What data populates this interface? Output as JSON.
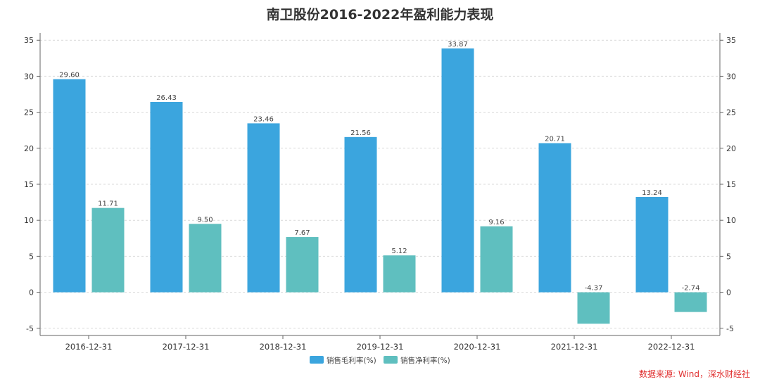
{
  "chart_data": {
    "type": "bar",
    "title": "南卫股份2016-2022年盈利能力表现",
    "categories": [
      "2016-12-31",
      "2017-12-31",
      "2018-12-31",
      "2019-12-31",
      "2020-12-31",
      "2021-12-31",
      "2022-12-31"
    ],
    "series": [
      {
        "name": "销售毛利率(%)",
        "color": "#3ba5de",
        "values": [
          29.6,
          26.43,
          23.46,
          21.56,
          33.87,
          20.71,
          13.24
        ],
        "labels": [
          "29.60",
          "26.43",
          "23.46",
          "21.56",
          "33.87",
          "20.71",
          "13.24"
        ]
      },
      {
        "name": "销售净利率(%)",
        "color": "#5fbfbf",
        "values": [
          11.71,
          9.5,
          7.67,
          5.12,
          9.16,
          -4.37,
          -2.74
        ],
        "labels": [
          "11.71",
          "9.50",
          "7.67",
          "5.12",
          "9.16",
          "-4.37",
          "-2.74"
        ]
      }
    ],
    "ylim": [
      -6,
      36
    ],
    "yticks": [
      -5,
      0,
      5,
      10,
      15,
      20,
      25,
      30,
      35
    ],
    "ytick_labels": [
      "-5",
      "0",
      "5",
      "10",
      "15",
      "20",
      "25",
      "30",
      "35"
    ],
    "dual_axis_mirror": true,
    "grid": true,
    "legend_position": "bottom-center"
  },
  "source_note": "数据来源: Wind，深水财经社",
  "source_color": "#e03030"
}
